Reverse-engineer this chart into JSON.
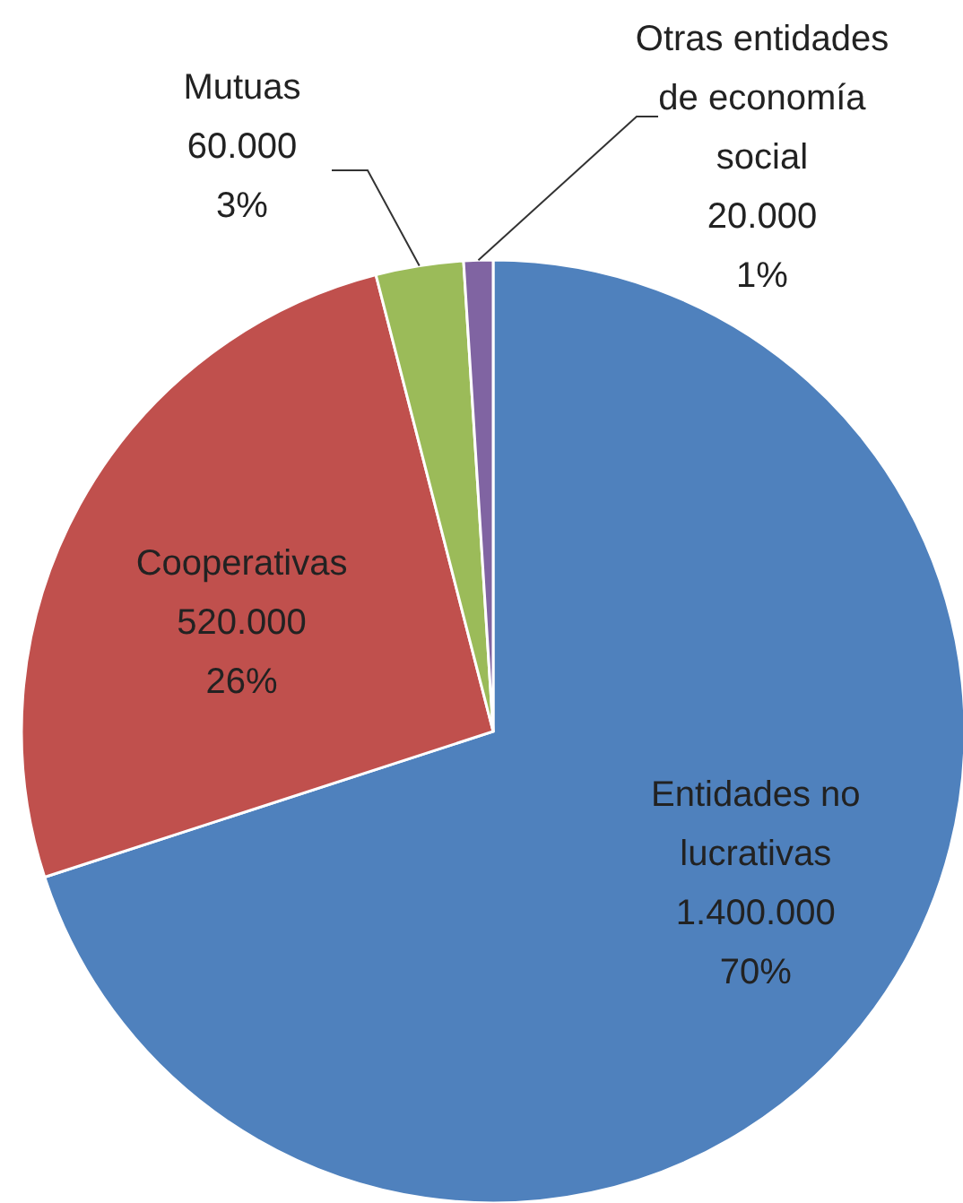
{
  "chart_data": {
    "type": "pie",
    "categories": [
      "Entidades no lucrativas",
      "Cooperativas",
      "Mutuas",
      "Otras entidades de economía social"
    ],
    "values": [
      1400000,
      520000,
      60000,
      20000
    ],
    "colors": [
      "#4f81bd",
      "#c0504d",
      "#9bbb59",
      "#8064a2"
    ],
    "value_labels": [
      "1.400.000 70%",
      "520.000 26%",
      "60.000 3%",
      "20.000 1%"
    ]
  }
}
